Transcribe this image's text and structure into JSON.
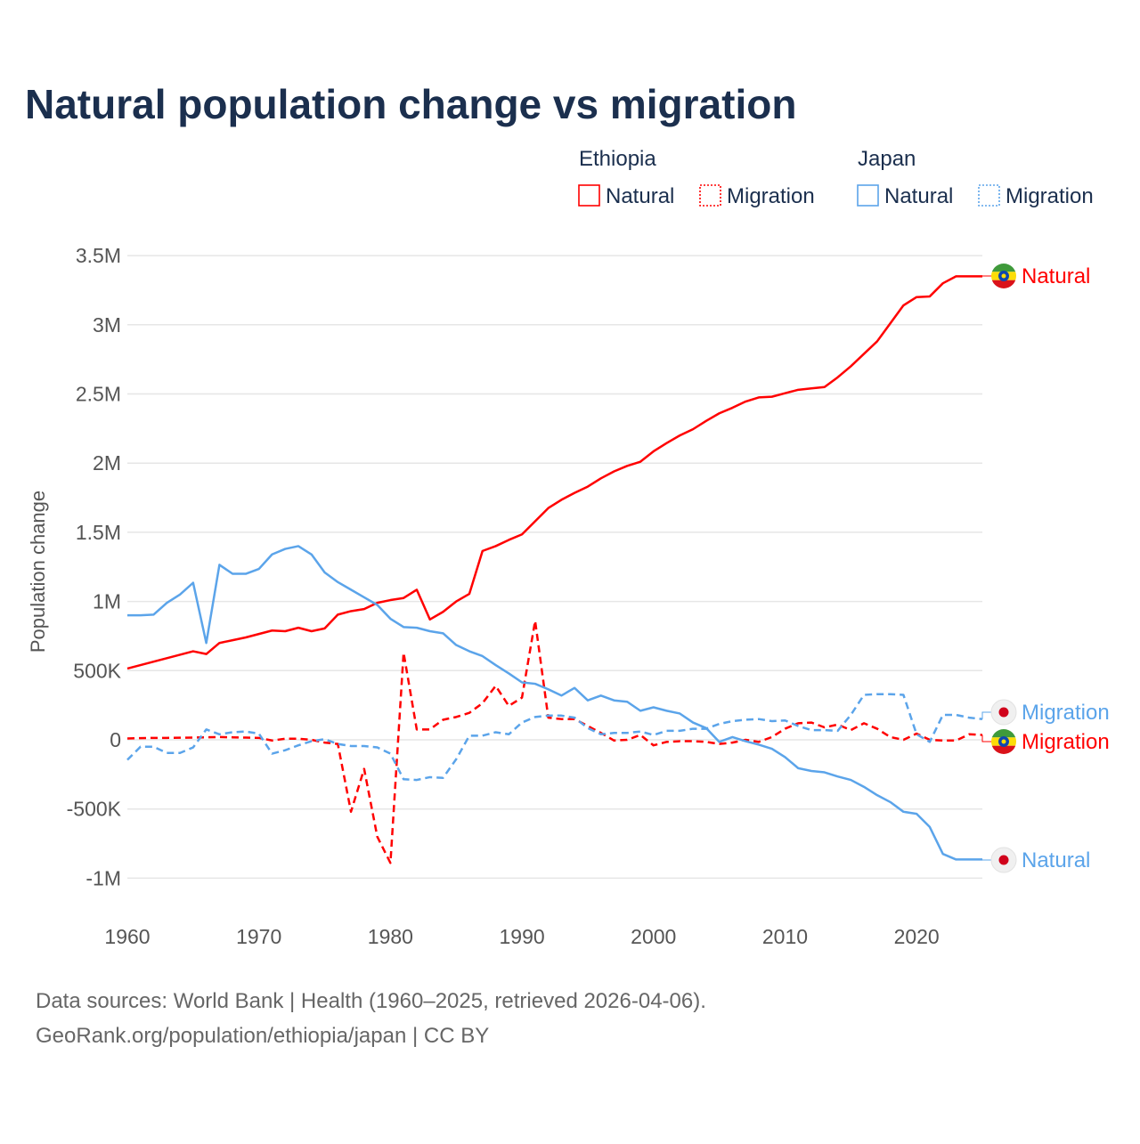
{
  "chart_data": {
    "type": "line",
    "title": "Natural population change vs migration",
    "ylabel": "Population change",
    "xlabel": "",
    "xlim": [
      1960,
      2025
    ],
    "ylim": [
      -1000000,
      3500000
    ],
    "grid": true,
    "x_ticks": [
      "1960",
      "1970",
      "1980",
      "1990",
      "2000",
      "2010",
      "2020"
    ],
    "y_ticks": [
      {
        "value": 3500000,
        "label": "3.5M"
      },
      {
        "value": 3000000,
        "label": "3M"
      },
      {
        "value": 2500000,
        "label": "2.5M"
      },
      {
        "value": 2000000,
        "label": "2M"
      },
      {
        "value": 1500000,
        "label": "1.5M"
      },
      {
        "value": 1000000,
        "label": "1M"
      },
      {
        "value": 500000,
        "label": "500K"
      },
      {
        "value": 0,
        "label": "0"
      },
      {
        "value": -500000,
        "label": "-500K"
      },
      {
        "value": -1000000,
        "label": "-1M"
      }
    ],
    "legend": {
      "placement": "top-right",
      "groups": [
        {
          "country": "Ethiopia",
          "items": [
            "Natural",
            "Migration"
          ]
        },
        {
          "country": "Japan",
          "items": [
            "Natural",
            "Migration"
          ]
        }
      ]
    },
    "start_year": 1960,
    "series": [
      {
        "name": "Natural",
        "country": "Ethiopia",
        "color": "#ff0000",
        "dashed": false,
        "end_label": "Natural",
        "flag": "ethiopia-flag",
        "values_k": [
          515,
          540,
          565,
          590,
          615,
          640,
          620,
          700,
          720,
          740,
          765,
          790,
          785,
          810,
          785,
          805,
          905,
          930,
          945,
          990,
          1010,
          1025,
          1085,
          870,
          925,
          1000,
          1055,
          1365,
          1400,
          1445,
          1485,
          1580,
          1675,
          1735,
          1785,
          1830,
          1890,
          1940,
          1980,
          2010,
          2085,
          2145,
          2200,
          2245,
          2305,
          2360,
          2400,
          2445,
          2475,
          2480,
          2505,
          2530,
          2540,
          2550,
          2620,
          2700,
          2790,
          2880,
          3010,
          3140,
          3200,
          3205,
          3300,
          3350
        ]
      },
      {
        "name": "Migration",
        "country": "Ethiopia",
        "color": "#ff0000",
        "dashed": true,
        "end_label": "Migration",
        "flag": "ethiopia-flag",
        "values_k": [
          10,
          12,
          14,
          14,
          15,
          16,
          18,
          20,
          18,
          16,
          14,
          -5,
          8,
          8,
          0,
          -20,
          -30,
          -520,
          -210,
          -700,
          -890,
          630,
          75,
          75,
          145,
          165,
          195,
          265,
          390,
          245,
          305,
          860,
          160,
          150,
          150,
          100,
          50,
          -5,
          0,
          35,
          -40,
          -15,
          -10,
          -10,
          -15,
          -30,
          -20,
          0,
          -15,
          20,
          80,
          120,
          125,
          90,
          110,
          70,
          120,
          80,
          20,
          0,
          45,
          0,
          -5,
          -5,
          40,
          35
        ]
      },
      {
        "name": "Natural",
        "country": "Japan",
        "color": "#5ba4ea",
        "dashed": false,
        "end_label": "Natural",
        "flag": "japan-flag",
        "values_k": [
          900,
          900,
          905,
          990,
          1050,
          1135,
          700,
          1265,
          1200,
          1200,
          1235,
          1340,
          1380,
          1400,
          1340,
          1210,
          1140,
          1085,
          1030,
          975,
          875,
          815,
          810,
          785,
          770,
          685,
          640,
          605,
          540,
          480,
          415,
          405,
          365,
          320,
          375,
          285,
          320,
          285,
          275,
          210,
          235,
          210,
          190,
          125,
          85,
          -15,
          20,
          -10,
          -35,
          -65,
          -125,
          -205,
          -225,
          -235,
          -265,
          -290,
          -340,
          -400,
          -450,
          -520,
          -535,
          -630,
          -825,
          -865
        ]
      },
      {
        "name": "Migration",
        "country": "Japan",
        "color": "#5ba4ea",
        "dashed": true,
        "end_label": "Migration",
        "flag": "japan-flag",
        "values_k": [
          -145,
          -50,
          -50,
          -95,
          -95,
          -55,
          75,
          40,
          55,
          60,
          45,
          -100,
          -75,
          -40,
          -10,
          5,
          -30,
          -45,
          -45,
          -55,
          -100,
          -285,
          -290,
          -270,
          -275,
          -140,
          30,
          30,
          55,
          40,
          125,
          165,
          175,
          175,
          160,
          85,
          40,
          50,
          50,
          60,
          35,
          65,
          65,
          80,
          80,
          115,
          135,
          145,
          150,
          135,
          140,
          100,
          70,
          70,
          65,
          180,
          325,
          330,
          330,
          325,
          40,
          -15,
          180,
          180,
          160,
          150
        ]
      }
    ]
  },
  "footer": {
    "line1": "Data sources: World Bank | Health (1960–2025, retrieved 2026-04-06).",
    "line2": "GeoRank.org/population/ethiopia/japan | CC BY"
  }
}
